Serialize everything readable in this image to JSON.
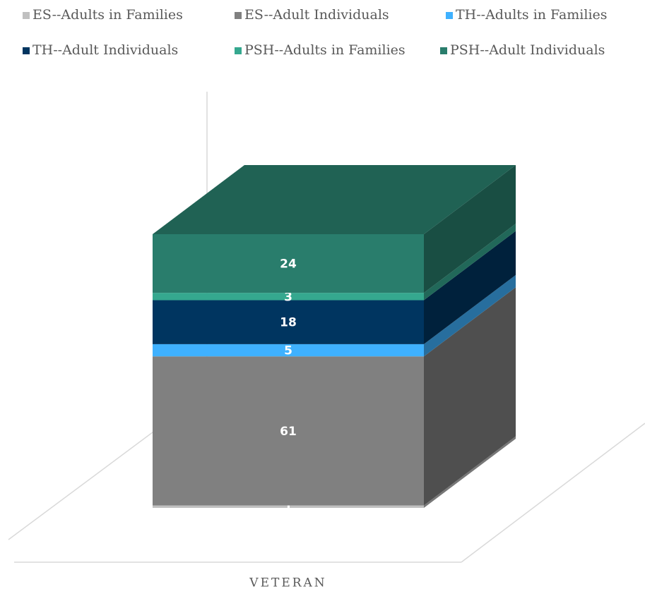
{
  "chart_data": {
    "type": "bar3d_stacked",
    "categories": [
      "VETERAN"
    ],
    "series": [
      {
        "name": "ES--Adults in Families",
        "color": "#c0c0c0",
        "values": [
          1
        ]
      },
      {
        "name": "ES--Adult Individuals",
        "color": "#808080",
        "values": [
          61
        ]
      },
      {
        "name": "TH--Adults in Families",
        "color": "#3fb1ff",
        "values": [
          5
        ]
      },
      {
        "name": "TH--Adult Individuals",
        "color": "#003560",
        "values": [
          18
        ]
      },
      {
        "name": "PSH--Adults in Families",
        "color": "#35a88f",
        "values": [
          3
        ]
      },
      {
        "name": "PSH--Adult Individuals",
        "color": "#297d6c",
        "values": [
          24
        ]
      }
    ]
  }
}
